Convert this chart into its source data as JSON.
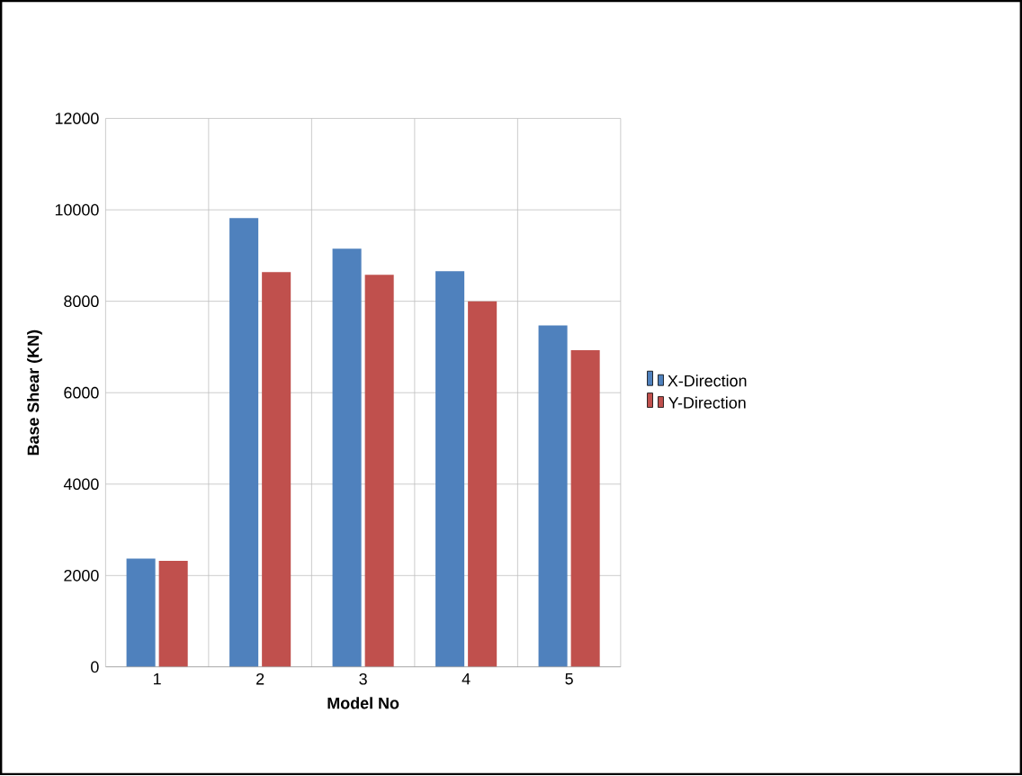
{
  "chart_data": {
    "type": "bar",
    "xlabel": "Model No",
    "ylabel": "Base Shear (KN)",
    "categories": [
      "1",
      "2",
      "3",
      "4",
      "5"
    ],
    "series": [
      {
        "name": "X-Direction",
        "color": "#4f81bd",
        "values": [
          2370,
          9820,
          9150,
          8660,
          7470
        ]
      },
      {
        "name": "Y-Direction",
        "color": "#c0504d",
        "values": [
          2320,
          8640,
          8580,
          8000,
          6930
        ]
      }
    ],
    "ylim": [
      0,
      12000
    ],
    "yticks": [
      0,
      2000,
      4000,
      6000,
      8000,
      10000,
      12000
    ],
    "grid": true,
    "legend": "right"
  }
}
